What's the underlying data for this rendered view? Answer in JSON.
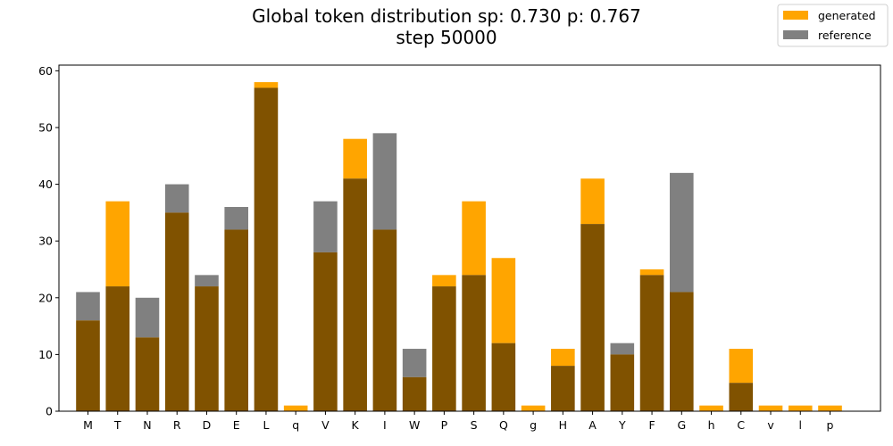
{
  "chart_data": {
    "type": "bar",
    "title": "Global token distribution sp: 0.730 p: 0.767",
    "subtitle": "step 50000",
    "xlabel": "",
    "ylabel": "",
    "ylim": [
      0,
      61
    ],
    "yticks": [
      0,
      10,
      20,
      30,
      40,
      50,
      60
    ],
    "grid": false,
    "legend_placement": "top-right",
    "categories": [
      "M",
      "T",
      "N",
      "R",
      "D",
      "E",
      "L",
      "q",
      "V",
      "K",
      "I",
      "W",
      "P",
      "S",
      "Q",
      "g",
      "H",
      "A",
      "Y",
      "F",
      "G",
      "h",
      "C",
      "v",
      "l",
      "p"
    ],
    "series": [
      {
        "name": "generated",
        "color": "#FFA500",
        "values": [
          16,
          37,
          13,
          35,
          22,
          32,
          58,
          1,
          28,
          48,
          32,
          6,
          24,
          37,
          27,
          1,
          11,
          41,
          10,
          25,
          21,
          1,
          11,
          1,
          1,
          1
        ]
      },
      {
        "name": "reference",
        "color": "#808080",
        "values": [
          21,
          22,
          20,
          40,
          24,
          36,
          57,
          0,
          37,
          41,
          49,
          11,
          22,
          24,
          12,
          0,
          8,
          33,
          12,
          24,
          42,
          0,
          5,
          0,
          0,
          0
        ]
      }
    ],
    "overlap_color": "#805200"
  }
}
